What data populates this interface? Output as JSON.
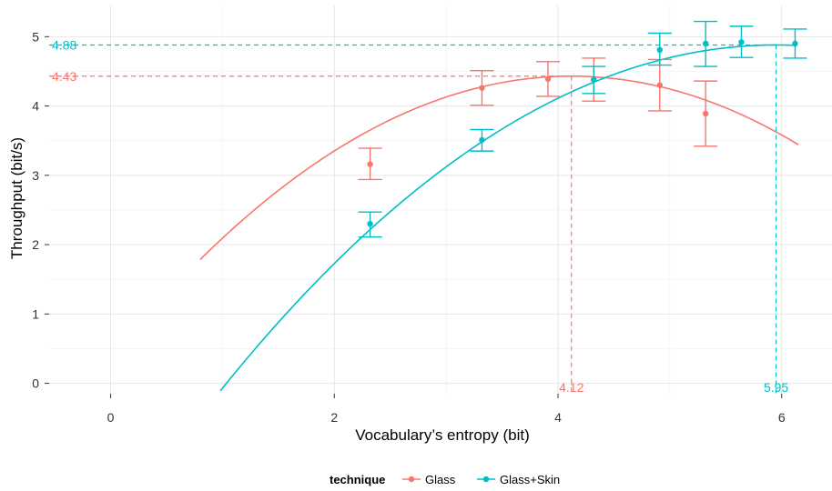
{
  "chart_data": {
    "type": "line",
    "title": "",
    "xlabel": "Vocabulary’s entropy (bit)",
    "ylabel": "Throughput (bit/s)",
    "xlim": [
      -0.55,
      6.45
    ],
    "ylim": [
      -0.15,
      5.45
    ],
    "x_ticks": [
      0,
      2,
      4,
      6
    ],
    "y_ticks": [
      0,
      1,
      2,
      3,
      4,
      5
    ],
    "x_tick_labels": [
      "0",
      "2",
      "4",
      "6"
    ],
    "y_tick_labels": [
      "0",
      "1",
      "2",
      "3",
      "4",
      "5"
    ],
    "grid": true,
    "legend": {
      "title": "technique",
      "position": "bottom"
    },
    "series": [
      {
        "name": "Glass",
        "color": "#F8766D",
        "points": [
          {
            "x": 2.32,
            "y": 3.16,
            "lo": 2.94,
            "hi": 3.39
          },
          {
            "x": 3.32,
            "y": 4.26,
            "lo": 4.01,
            "hi": 4.51
          },
          {
            "x": 3.91,
            "y": 4.39,
            "lo": 4.14,
            "hi": 4.64
          },
          {
            "x": 4.32,
            "y": 4.38,
            "lo": 4.07,
            "hi": 4.69
          },
          {
            "x": 4.91,
            "y": 4.3,
            "lo": 3.93,
            "hi": 4.67
          },
          {
            "x": 5.32,
            "y": 3.89,
            "lo": 3.42,
            "hi": 4.36
          }
        ],
        "fit": {
          "type": "quadratic",
          "vertex_x": 4.12,
          "vertex_y": 4.43,
          "a": -0.24,
          "x_range": [
            0.8,
            6.15
          ]
        },
        "peak_x_label": "4.12",
        "peak_y_label": "4.43"
      },
      {
        "name": "Glass+Skin",
        "color": "#00BFC4",
        "points": [
          {
            "x": 2.32,
            "y": 2.3,
            "lo": 2.11,
            "hi": 2.47
          },
          {
            "x": 3.32,
            "y": 3.51,
            "lo": 3.35,
            "hi": 3.66
          },
          {
            "x": 4.32,
            "y": 4.38,
            "lo": 4.18,
            "hi": 4.57
          },
          {
            "x": 4.91,
            "y": 4.81,
            "lo": 4.59,
            "hi": 5.05
          },
          {
            "x": 5.32,
            "y": 4.9,
            "lo": 4.57,
            "hi": 5.22
          },
          {
            "x": 5.64,
            "y": 4.92,
            "lo": 4.7,
            "hi": 5.15
          },
          {
            "x": 6.12,
            "y": 4.9,
            "lo": 4.69,
            "hi": 5.11
          }
        ],
        "fit": {
          "type": "quadratic",
          "vertex_x": 5.95,
          "vertex_y": 4.88,
          "a": -0.202,
          "x_range": [
            0.98,
            6.12
          ]
        },
        "peak_x_label": "5.95",
        "peak_y_label": "4.88"
      }
    ]
  }
}
